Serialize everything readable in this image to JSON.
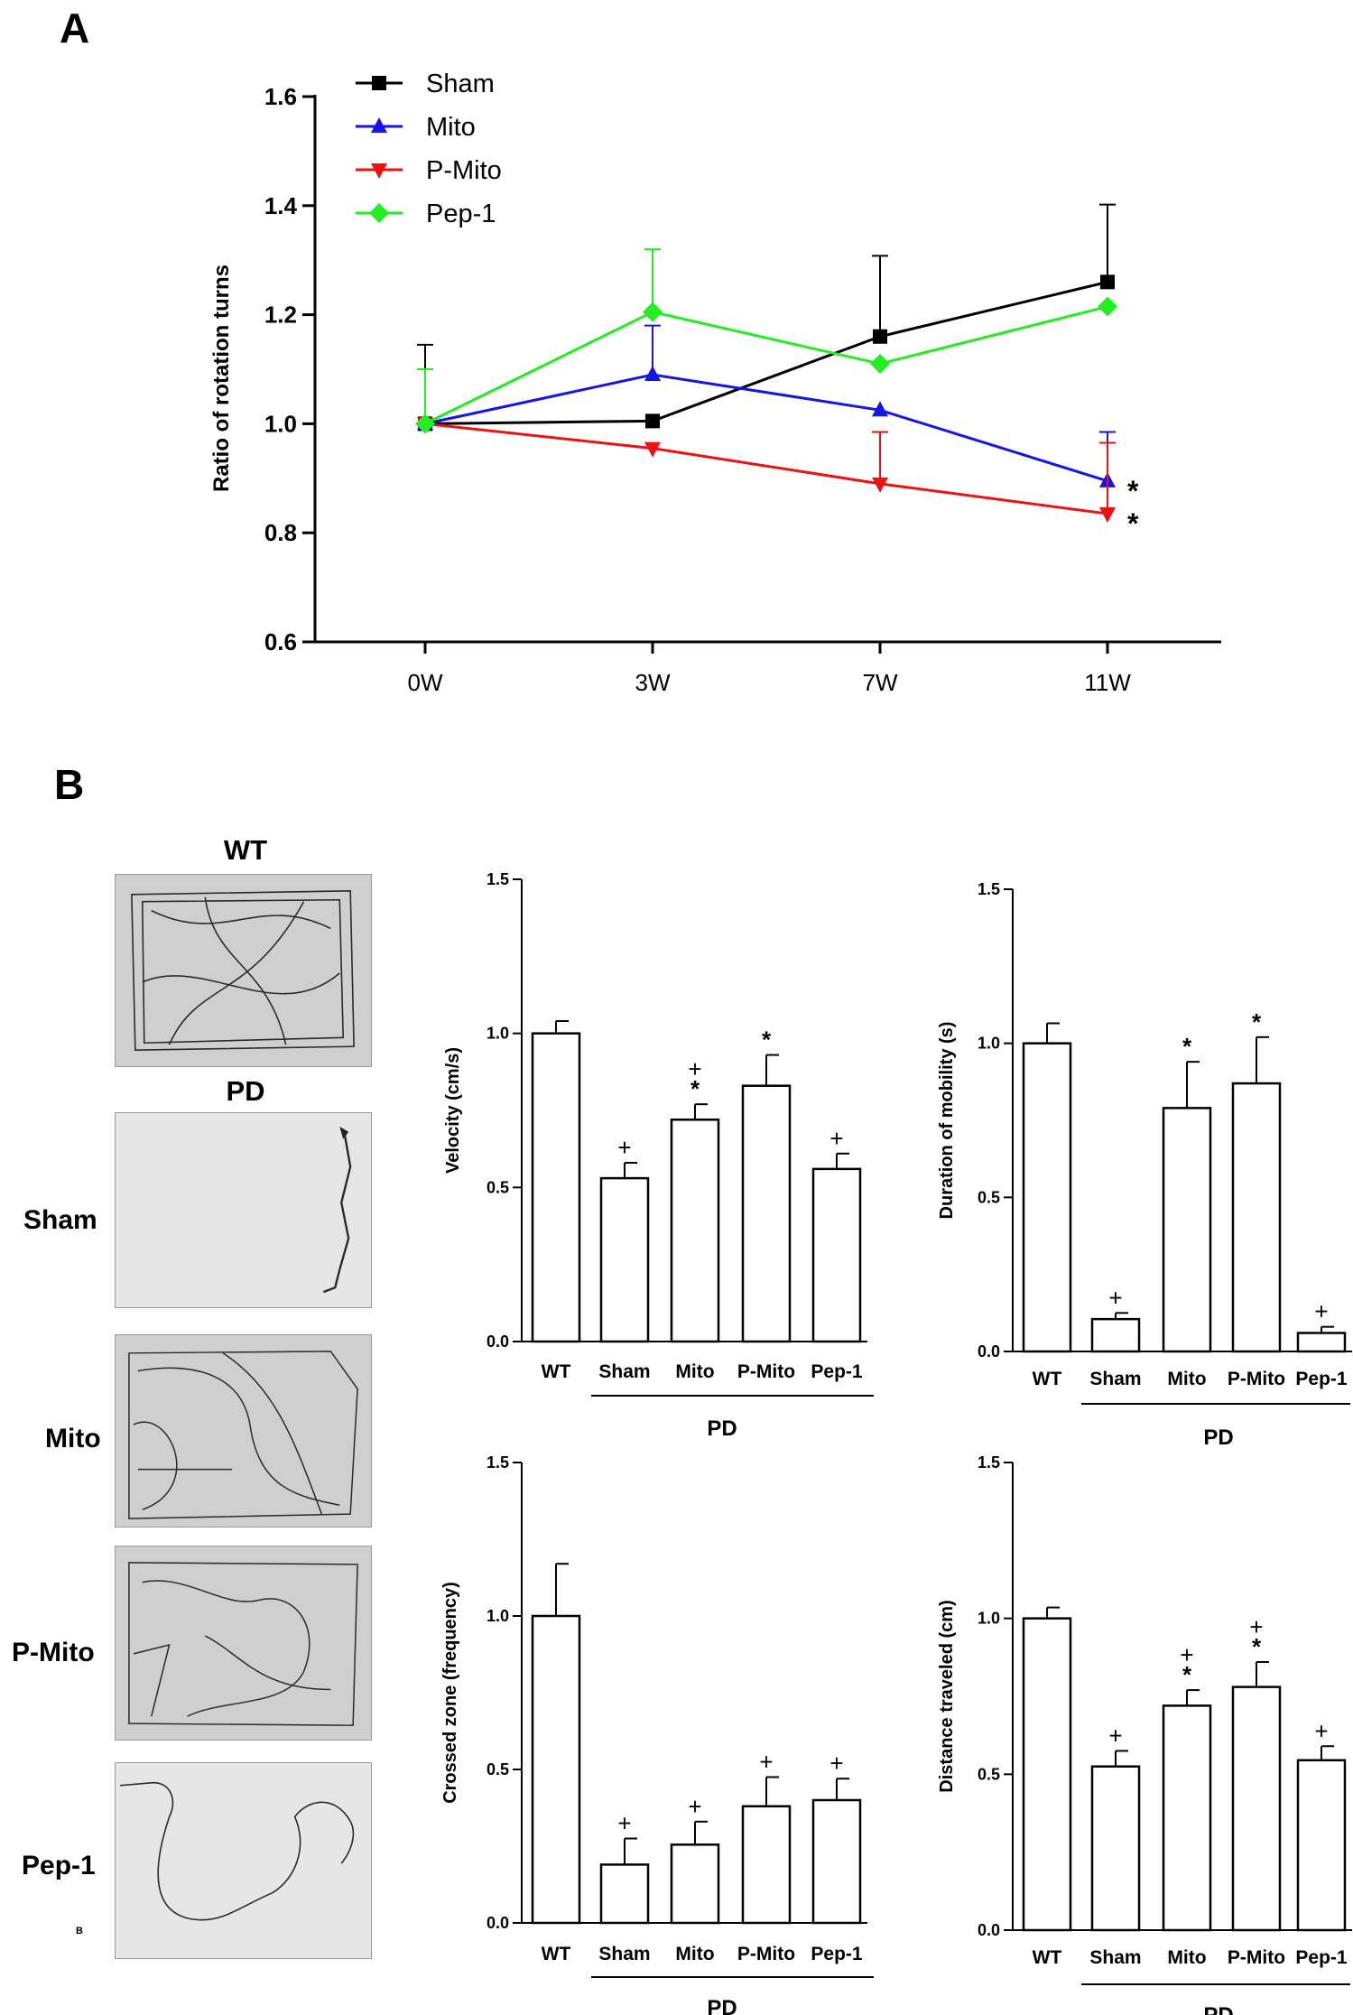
{
  "panel_a": {
    "letter": "A"
  },
  "panel_b": {
    "letter": "B",
    "small_mark": "B"
  },
  "photos": {
    "wt_title": "WT",
    "pd_title": "PD",
    "labels": [
      "Sham",
      "Mito",
      "P-Mito",
      "Pep-1"
    ]
  },
  "colors": {
    "sham": "#000000",
    "mito": "#1515e6",
    "pmito": "#ee1111",
    "pep1": "#22ee22"
  },
  "chart_data": [
    {
      "type": "line",
      "ylabel": "Ratio of rotation turns",
      "xlabel": "",
      "categories": [
        "0W",
        "3W",
        "7W",
        "11W"
      ],
      "ylim": [
        0.6,
        1.6
      ],
      "yticks": [
        "0.6",
        "0.8",
        "1.0",
        "1.2",
        "1.4",
        "1.6"
      ],
      "legend_position": "top-left",
      "series": [
        {
          "name": "Sham",
          "marker": "square",
          "values": [
            1.0,
            1.005,
            1.16,
            1.26
          ],
          "errors": [
            0.145,
            0.0,
            0.148,
            0.142
          ]
        },
        {
          "name": "Mito",
          "marker": "triangle-up",
          "values": [
            1.0,
            1.09,
            1.025,
            0.895
          ],
          "errors": [
            0.0,
            0.09,
            0.0,
            0.09
          ]
        },
        {
          "name": "P-Mito",
          "marker": "triangle-down",
          "values": [
            1.0,
            0.955,
            0.89,
            0.835
          ],
          "errors": [
            0.0,
            0.0,
            0.095,
            0.13
          ]
        },
        {
          "name": "Pep-1",
          "marker": "diamond",
          "values": [
            1.0,
            1.205,
            1.11,
            1.215
          ],
          "errors": [
            0.1,
            0.115,
            0.0,
            0.0
          ]
        }
      ],
      "annotations": [
        {
          "series": "Mito",
          "category": "11W",
          "text": "*"
        },
        {
          "series": "P-Mito",
          "category": "11W",
          "text": "*"
        }
      ]
    },
    {
      "type": "bar",
      "ylabel": "Velocity (cm/s)",
      "categories": [
        "WT",
        "Sham",
        "Mito",
        "P-Mito",
        "Pep-1"
      ],
      "group_label": "PD",
      "ylim": [
        0.0,
        1.5
      ],
      "yticks": [
        "0.0",
        "0.5",
        "1.0",
        "1.5"
      ],
      "values": [
        1.0,
        0.53,
        0.72,
        0.83,
        0.56
      ],
      "errors": [
        0.04,
        0.05,
        0.05,
        0.1,
        0.05
      ],
      "marks": [
        "",
        "+",
        "+\n*",
        "*",
        "+"
      ]
    },
    {
      "type": "bar",
      "ylabel": "Duration of mobility (s)",
      "categories": [
        "WT",
        "Sham",
        "Mito",
        "P-Mito",
        "Pep-1"
      ],
      "group_label": "PD",
      "ylim": [
        0.0,
        1.5
      ],
      "yticks": [
        "0.0",
        "0.5",
        "1.0",
        "1.5"
      ],
      "values": [
        1.0,
        0.105,
        0.79,
        0.87,
        0.06
      ],
      "errors": [
        0.065,
        0.02,
        0.15,
        0.15,
        0.02
      ],
      "marks": [
        "",
        "+",
        "*",
        "*",
        "+"
      ]
    },
    {
      "type": "bar",
      "ylabel": "Crossed zone (frequency)",
      "categories": [
        "WT",
        "Sham",
        "Mito",
        "P-Mito",
        "Pep-1"
      ],
      "group_label": "PD",
      "ylim": [
        0.0,
        1.5
      ],
      "yticks": [
        "0.0",
        "0.5",
        "1.0",
        "1.5"
      ],
      "values": [
        1.0,
        0.19,
        0.255,
        0.38,
        0.4
      ],
      "errors": [
        0.17,
        0.085,
        0.075,
        0.095,
        0.07
      ],
      "marks": [
        "",
        "+",
        "+",
        "+",
        "+"
      ]
    },
    {
      "type": "bar",
      "ylabel": "Distance traveled (cm)",
      "categories": [
        "WT",
        "Sham",
        "Mito",
        "P-Mito",
        "Pep-1"
      ],
      "group_label": "PD",
      "ylim": [
        0.0,
        1.5
      ],
      "yticks": [
        "0.0",
        "0.5",
        "1.0",
        "1.5"
      ],
      "values": [
        1.0,
        0.525,
        0.72,
        0.78,
        0.545
      ],
      "errors": [
        0.035,
        0.05,
        0.05,
        0.08,
        0.045
      ],
      "marks": [
        "",
        "+",
        "+\n*",
        "+\n*",
        "+"
      ]
    }
  ]
}
